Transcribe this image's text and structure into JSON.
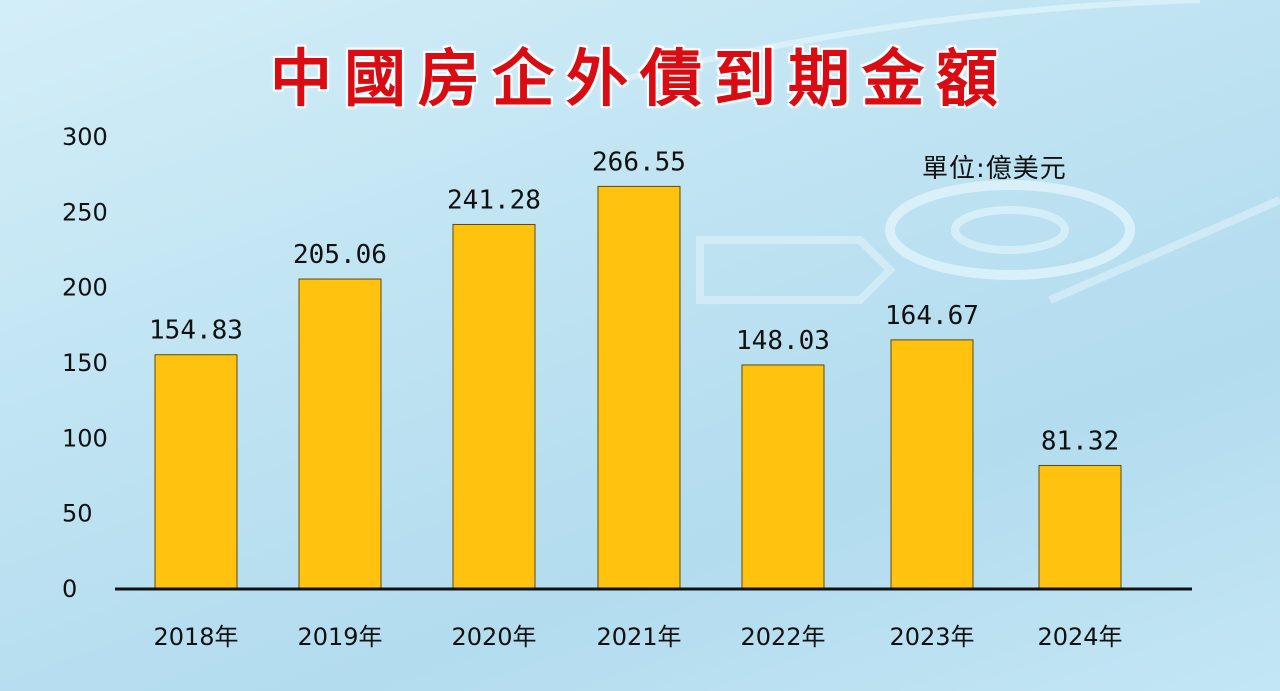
{
  "chart_data": {
    "type": "bar",
    "title": "中國房企外債到期金額",
    "unit": "單位:億美元",
    "categories": [
      "2018年",
      "2019年",
      "2020年",
      "2021年",
      "2022年",
      "2023年",
      "2024年"
    ],
    "values": [
      154.83,
      205.06,
      241.28,
      266.55,
      148.03,
      164.67,
      81.32
    ],
    "value_labels": [
      "154.83",
      "205.06",
      "241.28",
      "266.55",
      "148.03",
      "164.67",
      "81.32"
    ],
    "ylim": [
      0,
      300
    ],
    "yticks": [
      0,
      50,
      100,
      150,
      200,
      250,
      300
    ],
    "grid": false,
    "legend": "none",
    "colors": {
      "bar": "#ffc20e",
      "bar_stroke": "#5a4a10",
      "axis": "#111111",
      "title": "#d80c12"
    }
  }
}
